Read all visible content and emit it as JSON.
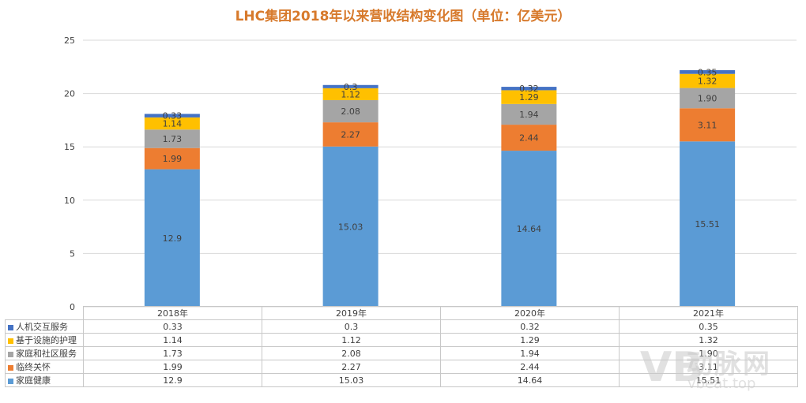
{
  "chart_data": {
    "type": "bar",
    "stacked": true,
    "title": "LHC集团2018年以来营收结构变化图（单位：亿美元）",
    "categories": [
      "2018年",
      "2019年",
      "2020年",
      "2021年"
    ],
    "ylim": [
      0,
      25
    ],
    "yticks": [
      "0",
      "5",
      "10",
      "15",
      "20",
      "25"
    ],
    "grid": true,
    "legend": "data-table",
    "series": [
      {
        "name": "家庭健康",
        "color": "#5b9bd5",
        "values": [
          12.9,
          15.03,
          14.64,
          15.51
        ],
        "labels": [
          "12.9",
          "15.03",
          "14.64",
          "15.51"
        ]
      },
      {
        "name": "临终关怀",
        "color": "#ed7d31",
        "values": [
          1.99,
          2.27,
          2.44,
          3.11
        ],
        "labels": [
          "1.99",
          "2.27",
          "2.44",
          "3.11"
        ]
      },
      {
        "name": "家庭和社区服务",
        "color": "#a5a5a5",
        "values": [
          1.73,
          2.08,
          1.94,
          1.9
        ],
        "labels": [
          "1.73",
          "2.08",
          "1.94",
          "1.90"
        ]
      },
      {
        "name": "基于设施的护理",
        "color": "#ffc000",
        "values": [
          1.14,
          1.12,
          1.29,
          1.32
        ],
        "labels": [
          "1.14",
          "1.12",
          "1.29",
          "1.32"
        ]
      },
      {
        "name": "人机交互服务",
        "color": "#4472c4",
        "values": [
          0.33,
          0.3,
          0.32,
          0.35
        ],
        "labels": [
          "0.33",
          "0.3",
          "0.32",
          "0.35"
        ]
      }
    ],
    "table_rows": [
      {
        "name": "人机交互服务",
        "color": "#4472c4",
        "cells": [
          "0.33",
          "0.3",
          "0.32",
          "0.35"
        ]
      },
      {
        "name": "基于设施的护理",
        "color": "#ffc000",
        "cells": [
          "1.14",
          "1.12",
          "1.29",
          "1.32"
        ]
      },
      {
        "name": "家庭和社区服务",
        "color": "#a5a5a5",
        "cells": [
          "1.73",
          "2.08",
          "1.94",
          "1.90"
        ]
      },
      {
        "name": "临终关怀",
        "color": "#ed7d31",
        "cells": [
          "1.99",
          "2.27",
          "2.44",
          "3.11"
        ]
      },
      {
        "name": "家庭健康",
        "color": "#5b9bd5",
        "cells": [
          "12.9",
          "15.03",
          "14.64",
          "15.51"
        ]
      }
    ]
  },
  "watermark": {
    "logo": "VB",
    "brand": "动脉网",
    "url": "vbeat.top"
  }
}
